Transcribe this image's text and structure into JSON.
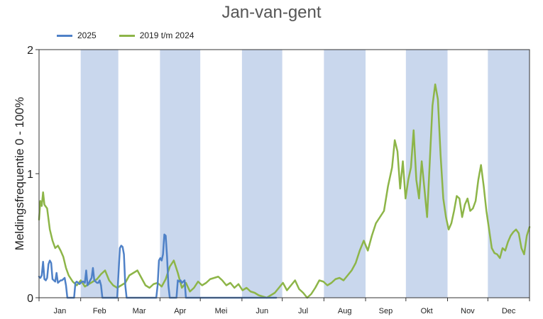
{
  "chart_data": {
    "type": "line",
    "title": "Jan-van-gent",
    "xlabel": "",
    "ylabel": "Meldingsfrequentie 0 - 100%",
    "ylim": [
      0,
      2
    ],
    "yticks": [
      "0",
      "1",
      "2"
    ],
    "legend_position": "top-left",
    "grid": false,
    "months": [
      "Jan",
      "Feb",
      "Mar",
      "Apr",
      "Mei",
      "Jun",
      "Jul",
      "Aug",
      "Sep",
      "Okt",
      "Nov",
      "Dec"
    ],
    "shaded_months": [
      "Feb",
      "Apr",
      "Jun",
      "Aug",
      "Okt",
      "Dec"
    ],
    "shade_color": "#c9d7ed",
    "series": [
      {
        "name": "2025",
        "color": "#4f81c7",
        "points": [
          [
            1,
            0.17
          ],
          [
            2,
            0.16
          ],
          [
            3,
            0.18
          ],
          [
            4,
            0.29
          ],
          [
            5,
            0.15
          ],
          [
            6,
            0.14
          ],
          [
            7,
            0.16
          ],
          [
            8,
            0.27
          ],
          [
            9,
            0.3
          ],
          [
            10,
            0.28
          ],
          [
            11,
            0.15
          ],
          [
            12,
            0.14
          ],
          [
            13,
            0.13
          ],
          [
            14,
            0.2
          ],
          [
            15,
            0.12
          ],
          [
            16,
            0.13
          ],
          [
            17,
            0.14
          ],
          [
            18,
            0.14
          ],
          [
            19,
            0.15
          ],
          [
            20,
            0.16
          ],
          [
            21,
            0.1
          ],
          [
            22,
            0.0
          ],
          [
            23,
            0.0
          ],
          [
            24,
            0.0
          ],
          [
            25,
            0.0
          ],
          [
            26,
            0.0
          ],
          [
            27,
            0.0
          ],
          [
            28,
            0.12
          ],
          [
            29,
            0.13
          ],
          [
            30,
            0.12
          ],
          [
            31,
            0.11
          ],
          [
            32,
            0.12
          ],
          [
            33,
            0.13
          ],
          [
            34,
            0.13
          ],
          [
            35,
            0.12
          ],
          [
            36,
            0.22
          ],
          [
            37,
            0.1
          ],
          [
            38,
            0.12
          ],
          [
            39,
            0.14
          ],
          [
            40,
            0.16
          ],
          [
            41,
            0.24
          ],
          [
            42,
            0.14
          ],
          [
            43,
            0.13
          ],
          [
            44,
            0.12
          ],
          [
            45,
            0.12
          ],
          [
            46,
            0.14
          ],
          [
            47,
            0.1
          ],
          [
            48,
            0.0
          ],
          [
            49,
            0.0
          ],
          [
            50,
            0.0
          ],
          [
            51,
            0.0
          ],
          [
            52,
            0.0
          ],
          [
            53,
            0.0
          ],
          [
            54,
            0.0
          ],
          [
            55,
            0.0
          ],
          [
            56,
            0.0
          ],
          [
            57,
            0.0
          ],
          [
            58,
            0.0
          ],
          [
            59,
            0.0
          ],
          [
            60,
            0.2
          ],
          [
            61,
            0.4
          ],
          [
            62,
            0.42
          ],
          [
            63,
            0.41
          ],
          [
            64,
            0.35
          ],
          [
            65,
            0.1
          ],
          [
            66,
            0.0
          ],
          [
            67,
            0.0
          ],
          [
            68,
            0.0
          ],
          [
            69,
            0.0
          ],
          [
            70,
            0.0
          ],
          [
            80,
            0.0
          ],
          [
            88,
            0.0
          ],
          [
            89,
            0.1
          ],
          [
            90,
            0.3
          ],
          [
            91,
            0.32
          ],
          [
            92,
            0.3
          ],
          [
            93,
            0.35
          ],
          [
            94,
            0.51
          ],
          [
            95,
            0.5
          ],
          [
            96,
            0.33
          ],
          [
            97,
            0.1
          ],
          [
            98,
            0.0
          ],
          [
            103,
            0.0
          ],
          [
            104,
            0.14
          ],
          [
            105,
            0.13
          ],
          [
            106,
            0.14
          ],
          [
            107,
            0.12
          ],
          [
            108,
            0.13
          ],
          [
            109,
            0.14
          ],
          [
            110,
            0.0
          ],
          [
            130,
            0.0
          ],
          [
            150,
            0.0
          ],
          [
            170,
            0.0
          ],
          [
            177,
            0.0
          ]
        ]
      },
      {
        "name": "2019 t/m 2024",
        "color": "#8db548",
        "points": [
          [
            1,
            0.63
          ],
          [
            2,
            0.78
          ],
          [
            3,
            0.74
          ],
          [
            4,
            0.85
          ],
          [
            5,
            0.75
          ],
          [
            7,
            0.72
          ],
          [
            9,
            0.55
          ],
          [
            11,
            0.46
          ],
          [
            13,
            0.4
          ],
          [
            15,
            0.42
          ],
          [
            17,
            0.38
          ],
          [
            19,
            0.33
          ],
          [
            21,
            0.24
          ],
          [
            23,
            0.18
          ],
          [
            26,
            0.13
          ],
          [
            29,
            0.1
          ],
          [
            32,
            0.14
          ],
          [
            35,
            0.09
          ],
          [
            38,
            0.11
          ],
          [
            41,
            0.13
          ],
          [
            44,
            0.15
          ],
          [
            47,
            0.19
          ],
          [
            50,
            0.22
          ],
          [
            53,
            0.14
          ],
          [
            56,
            0.1
          ],
          [
            59,
            0.08
          ],
          [
            62,
            0.1
          ],
          [
            65,
            0.12
          ],
          [
            68,
            0.18
          ],
          [
            71,
            0.2
          ],
          [
            74,
            0.22
          ],
          [
            77,
            0.16
          ],
          [
            80,
            0.1
          ],
          [
            83,
            0.08
          ],
          [
            86,
            0.11
          ],
          [
            89,
            0.12
          ],
          [
            92,
            0.09
          ],
          [
            95,
            0.15
          ],
          [
            98,
            0.25
          ],
          [
            101,
            0.3
          ],
          [
            104,
            0.2
          ],
          [
            107,
            0.08
          ],
          [
            110,
            0.12
          ],
          [
            113,
            0.05
          ],
          [
            116,
            0.08
          ],
          [
            119,
            0.13
          ],
          [
            122,
            0.1
          ],
          [
            125,
            0.12
          ],
          [
            128,
            0.15
          ],
          [
            131,
            0.16
          ],
          [
            134,
            0.17
          ],
          [
            137,
            0.14
          ],
          [
            140,
            0.1
          ],
          [
            143,
            0.12
          ],
          [
            146,
            0.08
          ],
          [
            149,
            0.11
          ],
          [
            152,
            0.06
          ],
          [
            155,
            0.08
          ],
          [
            158,
            0.05
          ],
          [
            161,
            0.04
          ],
          [
            164,
            0.02
          ],
          [
            167,
            0.01
          ],
          [
            170,
            0.0
          ],
          [
            173,
            0.02
          ],
          [
            176,
            0.04
          ],
          [
            179,
            0.08
          ],
          [
            182,
            0.12
          ],
          [
            185,
            0.06
          ],
          [
            188,
            0.1
          ],
          [
            191,
            0.14
          ],
          [
            194,
            0.07
          ],
          [
            197,
            0.04
          ],
          [
            200,
            0.0
          ],
          [
            203,
            0.03
          ],
          [
            206,
            0.08
          ],
          [
            209,
            0.14
          ],
          [
            212,
            0.13
          ],
          [
            215,
            0.1
          ],
          [
            218,
            0.12
          ],
          [
            221,
            0.15
          ],
          [
            224,
            0.16
          ],
          [
            227,
            0.14
          ],
          [
            230,
            0.18
          ],
          [
            233,
            0.22
          ],
          [
            236,
            0.28
          ],
          [
            239,
            0.38
          ],
          [
            242,
            0.46
          ],
          [
            245,
            0.38
          ],
          [
            248,
            0.5
          ],
          [
            251,
            0.6
          ],
          [
            254,
            0.65
          ],
          [
            257,
            0.7
          ],
          [
            260,
            0.9
          ],
          [
            263,
            1.05
          ],
          [
            265,
            1.27
          ],
          [
            267,
            1.18
          ],
          [
            269,
            0.88
          ],
          [
            271,
            1.1
          ],
          [
            273,
            0.8
          ],
          [
            275,
            0.95
          ],
          [
            277,
            1.05
          ],
          [
            279,
            1.35
          ],
          [
            281,
            0.95
          ],
          [
            283,
            0.8
          ],
          [
            285,
            1.1
          ],
          [
            287,
            0.88
          ],
          [
            289,
            0.65
          ],
          [
            291,
            1.1
          ],
          [
            293,
            1.55
          ],
          [
            295,
            1.72
          ],
          [
            297,
            1.6
          ],
          [
            299,
            1.15
          ],
          [
            301,
            0.8
          ],
          [
            303,
            0.65
          ],
          [
            305,
            0.55
          ],
          [
            307,
            0.6
          ],
          [
            309,
            0.7
          ],
          [
            311,
            0.82
          ],
          [
            313,
            0.8
          ],
          [
            315,
            0.65
          ],
          [
            317,
            0.75
          ],
          [
            319,
            0.8
          ],
          [
            321,
            0.7
          ],
          [
            323,
            0.72
          ],
          [
            325,
            0.78
          ],
          [
            327,
            0.95
          ],
          [
            329,
            1.07
          ],
          [
            331,
            0.9
          ],
          [
            333,
            0.7
          ],
          [
            335,
            0.55
          ],
          [
            337,
            0.4
          ],
          [
            339,
            0.36
          ],
          [
            341,
            0.35
          ],
          [
            343,
            0.32
          ],
          [
            345,
            0.4
          ],
          [
            347,
            0.38
          ],
          [
            349,
            0.45
          ],
          [
            351,
            0.5
          ],
          [
            353,
            0.53
          ],
          [
            355,
            0.55
          ],
          [
            357,
            0.52
          ],
          [
            359,
            0.4
          ],
          [
            361,
            0.35
          ],
          [
            363,
            0.5
          ],
          [
            365,
            0.57
          ]
        ]
      }
    ]
  }
}
